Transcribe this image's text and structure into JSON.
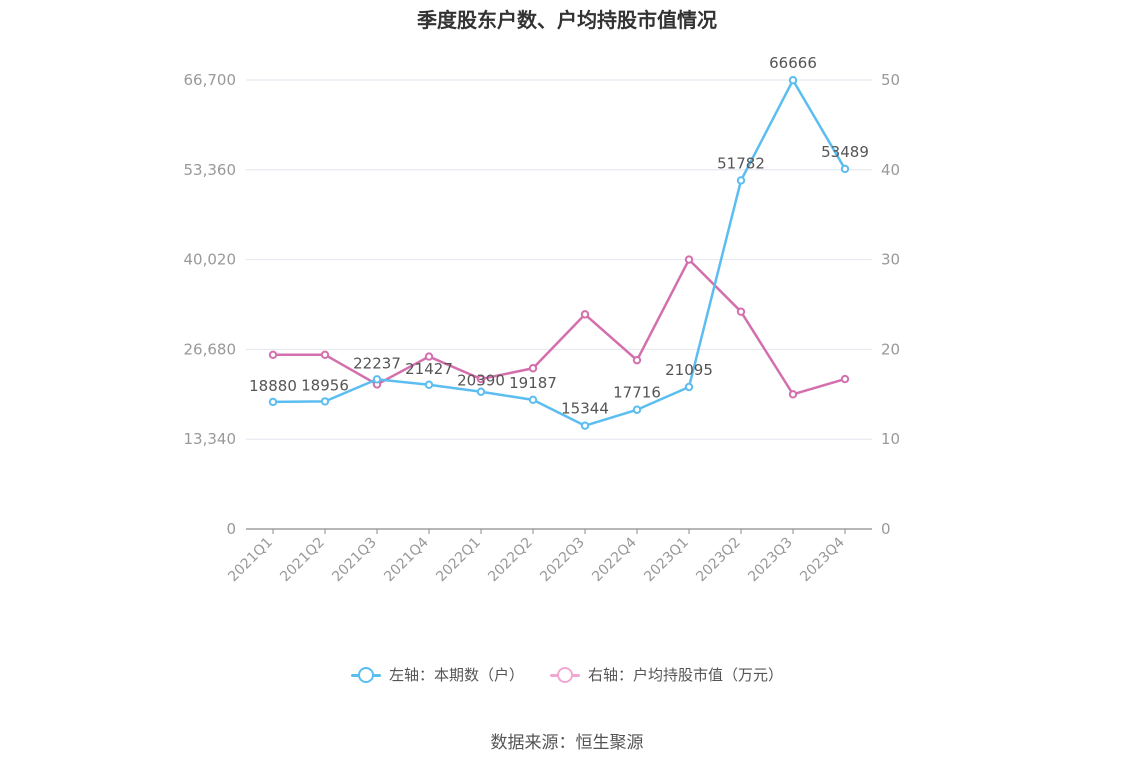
{
  "chart_data": {
    "type": "line",
    "title": "季度股东户数、户均持股市值情况",
    "categories": [
      "2021Q1",
      "2021Q2",
      "2021Q3",
      "2021Q4",
      "2022Q1",
      "2022Q2",
      "2022Q3",
      "2022Q4",
      "2023Q1",
      "2023Q2",
      "2023Q3",
      "2023Q4"
    ],
    "left_axis": {
      "ylim": [
        0,
        66700
      ],
      "ticks": [
        0,
        13340,
        26680,
        40020,
        53360,
        66700
      ],
      "tick_labels": [
        "0",
        "13,340",
        "26,680",
        "40,020",
        "53,360",
        "66,700"
      ]
    },
    "right_axis": {
      "ylim": [
        0,
        50
      ],
      "ticks": [
        0,
        10,
        20,
        30,
        40,
        50
      ],
      "tick_labels": [
        "0",
        "10",
        "20",
        "30",
        "40",
        "50"
      ]
    },
    "series": [
      {
        "name": "左轴：本期数（户）",
        "axis": "left",
        "color": "#5bbdf0",
        "values": [
          18880,
          18956,
          22237,
          21427,
          20390,
          19187,
          15344,
          17716,
          21095,
          51782,
          66666,
          53489
        ],
        "labels": [
          "18880",
          "18956",
          "22237",
          "21427",
          "20390",
          "19187",
          "15344",
          "17716",
          "21095",
          "51782",
          "66666",
          "53489"
        ]
      },
      {
        "name": "右轴：户均持股市值（万元）",
        "axis": "right",
        "color": "#d46fae",
        "values": [
          19.4,
          19.4,
          16.1,
          19.2,
          16.7,
          17.9,
          23.9,
          18.8,
          30.0,
          24.2,
          15.0,
          16.7
        ]
      }
    ],
    "grid": true,
    "legend_position": "bottom-center"
  },
  "source": "数据来源：恒生聚源",
  "legend_marker_colors": {
    "left": "#5bbdf0",
    "right": "#f0a8d0"
  }
}
